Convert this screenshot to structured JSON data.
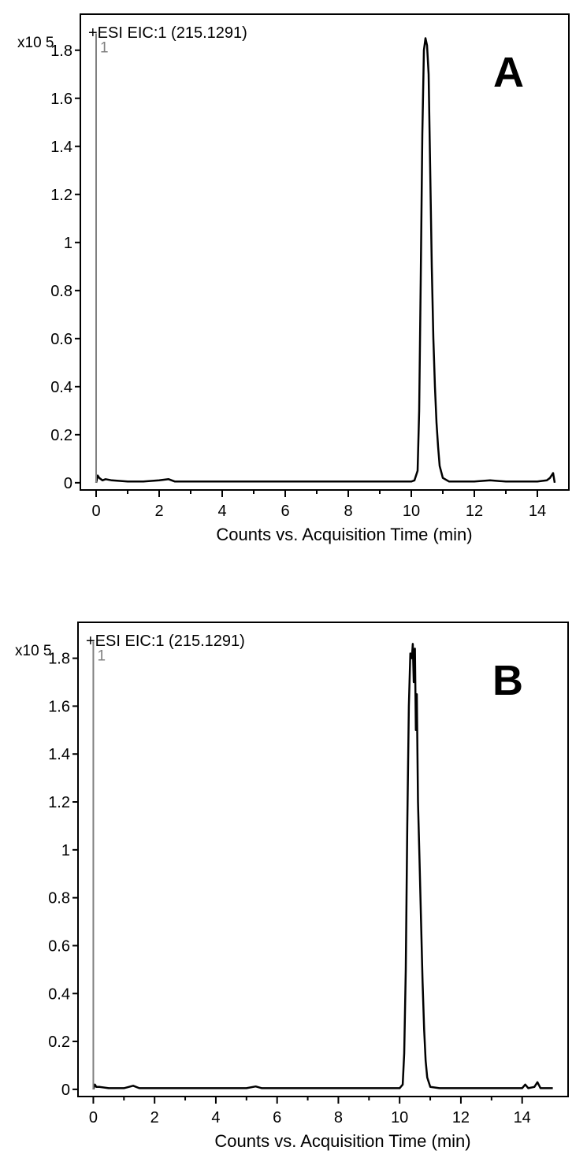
{
  "chart_data": [
    {
      "type": "line",
      "panel_label": "A",
      "title": "+ESI EIC:1 (215.1291)",
      "scale_label": "x10 5",
      "xlabel": "Counts vs. Acquisition Time (min)",
      "ylabel": "",
      "marker_label": "1",
      "xlim": [
        -0.5,
        15.0
      ],
      "ylim": [
        -0.03,
        1.95
      ],
      "xticks": [
        0,
        2,
        4,
        6,
        8,
        10,
        12,
        14
      ],
      "xtick_labels": [
        "0",
        "2",
        "4",
        "6",
        "8",
        "10",
        "12",
        "14"
      ],
      "yticks": [
        0,
        0.2,
        0.4,
        0.6,
        0.8,
        1,
        1.2,
        1.4,
        1.6,
        1.8
      ],
      "ytick_labels": [
        "0",
        "0.2",
        "0.4",
        "0.6",
        "0.8",
        "1",
        "1.2",
        "1.4",
        "1.6",
        "1.8"
      ],
      "grid": false,
      "series": [
        {
          "x": [
            0.0,
            0.05,
            0.1,
            0.2,
            0.3,
            0.5,
            1.0,
            1.5,
            2.0,
            2.3,
            2.5,
            3.0,
            4.0,
            5.0,
            6.0,
            7.0,
            8.0,
            9.0,
            9.5,
            10.0,
            10.1,
            10.2,
            10.25,
            10.3,
            10.35,
            10.4,
            10.45,
            10.5,
            10.55,
            10.6,
            10.65,
            10.7,
            10.75,
            10.8,
            10.85,
            10.9,
            11.0,
            11.2,
            11.5,
            12.0,
            12.5,
            13.0,
            13.5,
            14.0,
            14.3,
            14.4,
            14.5,
            14.55
          ],
          "y": [
            0.0,
            0.03,
            0.02,
            0.01,
            0.015,
            0.01,
            0.005,
            0.005,
            0.01,
            0.015,
            0.005,
            0.005,
            0.005,
            0.005,
            0.005,
            0.005,
            0.005,
            0.005,
            0.005,
            0.005,
            0.01,
            0.05,
            0.3,
            0.85,
            1.45,
            1.8,
            1.85,
            1.82,
            1.7,
            1.3,
            0.9,
            0.6,
            0.4,
            0.25,
            0.15,
            0.07,
            0.02,
            0.005,
            0.005,
            0.005,
            0.01,
            0.005,
            0.005,
            0.005,
            0.01,
            0.02,
            0.04,
            0.0
          ]
        }
      ]
    },
    {
      "type": "line",
      "panel_label": "B",
      "title": "+ESI EIC:1 (215.1291)",
      "scale_label": "x10 5",
      "xlabel": "Counts vs. Acquisition Time (min)",
      "ylabel": "",
      "marker_label": "1",
      "xlim": [
        -0.5,
        15.5
      ],
      "ylim": [
        -0.03,
        1.95
      ],
      "xticks": [
        0,
        2,
        4,
        6,
        8,
        10,
        12,
        14
      ],
      "xtick_labels": [
        "0",
        "2",
        "4",
        "6",
        "8",
        "10",
        "12",
        "14"
      ],
      "yticks": [
        0,
        0.2,
        0.4,
        0.6,
        0.8,
        1,
        1.2,
        1.4,
        1.6,
        1.8
      ],
      "ytick_labels": [
        "0",
        "0.2",
        "0.4",
        "0.6",
        "0.8",
        "1",
        "1.2",
        "1.4",
        "1.6",
        "1.8"
      ],
      "grid": false,
      "series": [
        {
          "x": [
            0.0,
            0.05,
            0.1,
            0.2,
            0.5,
            1.0,
            1.3,
            1.5,
            2.0,
            3.0,
            4.0,
            5.0,
            5.3,
            5.5,
            6.0,
            7.0,
            8.0,
            9.0,
            9.5,
            10.0,
            10.1,
            10.15,
            10.2,
            10.25,
            10.3,
            10.35,
            10.4,
            10.43,
            10.46,
            10.5,
            10.53,
            10.56,
            10.6,
            10.65,
            10.7,
            10.75,
            10.8,
            10.85,
            10.9,
            11.0,
            11.3,
            11.5,
            12.0,
            12.5,
            13.0,
            13.5,
            14.0,
            14.1,
            14.2,
            14.4,
            14.5,
            14.6,
            15.0
          ],
          "y": [
            0.0,
            0.02,
            0.01,
            0.01,
            0.005,
            0.005,
            0.015,
            0.005,
            0.005,
            0.005,
            0.005,
            0.005,
            0.012,
            0.005,
            0.005,
            0.005,
            0.005,
            0.005,
            0.005,
            0.005,
            0.02,
            0.15,
            0.5,
            1.1,
            1.6,
            1.82,
            1.8,
            1.86,
            1.7,
            1.84,
            1.5,
            1.65,
            1.2,
            0.95,
            0.7,
            0.45,
            0.25,
            0.12,
            0.05,
            0.01,
            0.005,
            0.005,
            0.005,
            0.005,
            0.005,
            0.005,
            0.005,
            0.02,
            0.005,
            0.01,
            0.03,
            0.005,
            0.005
          ]
        }
      ]
    }
  ]
}
